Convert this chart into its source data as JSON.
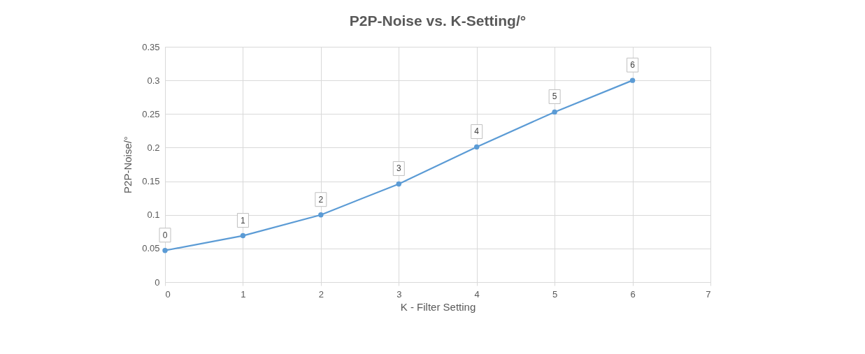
{
  "chart_data": {
    "type": "line",
    "title": "P2P-Noise vs. K-Setting/°",
    "xlabel": "K - Filter Setting",
    "ylabel": "P2P-Noise/°",
    "x": [
      0,
      1,
      2,
      3,
      4,
      5,
      6
    ],
    "series": [
      {
        "color": "#5b9bd5",
        "values": [
          0.047,
          0.069,
          0.1,
          0.146,
          0.201,
          0.253,
          0.3
        ]
      }
    ],
    "annotations": [
      {
        "text": "0",
        "x": 0,
        "y": 0.047
      },
      {
        "text": "1",
        "x": 1,
        "y": 0.069
      },
      {
        "text": "2",
        "x": 2,
        "y": 0.1
      },
      {
        "text": "3",
        "x": 3,
        "y": 0.146
      },
      {
        "text": "4",
        "x": 4,
        "y": 0.201
      },
      {
        "text": "5",
        "x": 5,
        "y": 0.253
      },
      {
        "text": "6",
        "x": 6,
        "y": 0.3
      }
    ],
    "xlim": [
      0,
      7
    ],
    "xticks": [
      0,
      1,
      2,
      3,
      4,
      5,
      6,
      7
    ],
    "ylim": [
      0,
      0.35
    ],
    "yticks": [
      0,
      0.05,
      0.1,
      0.15,
      0.2,
      0.25,
      0.3,
      0.35
    ],
    "grid": true,
    "marker": "circle",
    "line_style": "solid"
  }
}
